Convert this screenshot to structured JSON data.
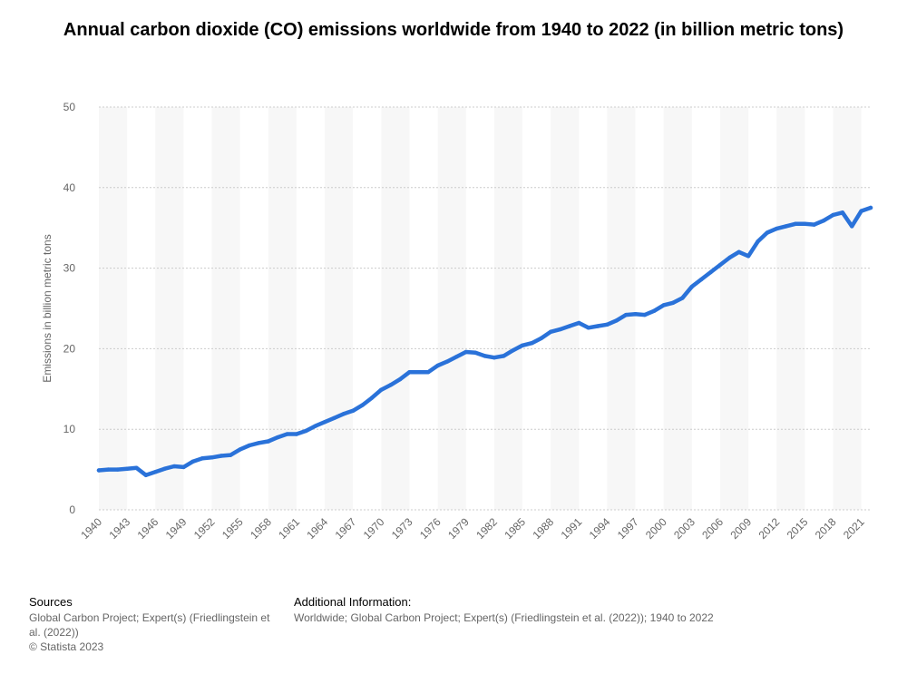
{
  "title": "Annual carbon dioxide (CO) emissions worldwide from 1940 to 2022 (in billion metric tons)",
  "footer": {
    "sources_label": "Sources",
    "sources_text": "Global Carbon Project; Expert(s) (Friedlingstein et al. (2022))",
    "copyright": "© Statista 2023",
    "info_label": "Additional Information:",
    "info_text": "Worldwide; Global Carbon Project; Expert(s) (Friedlingstein et al. (2022)); 1940 to 2022"
  },
  "colors": {
    "line": "#2a72d9",
    "band": "#f7f7f7",
    "grid": "#cccccc",
    "axis_text": "#666666"
  },
  "chart_data": {
    "type": "line",
    "title": "Annual carbon dioxide (CO) emissions worldwide from 1940 to 2022 (in billion metric tons)",
    "xlabel": "",
    "ylabel": "Emissions in billion metric tons",
    "ylim": [
      0,
      50
    ],
    "yticks": [
      0,
      10,
      20,
      30,
      40,
      50
    ],
    "xticks": [
      "1940",
      "1943",
      "1946",
      "1949",
      "1952",
      "1955",
      "1958",
      "1961",
      "1964",
      "1967",
      "1970",
      "1973",
      "1976",
      "1979",
      "1982",
      "1985",
      "1988",
      "1991",
      "1994",
      "1997",
      "2000",
      "2003",
      "2006",
      "2009",
      "2012",
      "2015",
      "2018",
      "2021"
    ],
    "grid": true,
    "legend": "none",
    "x": [
      1940,
      1941,
      1942,
      1943,
      1944,
      1945,
      1946,
      1947,
      1948,
      1949,
      1950,
      1951,
      1952,
      1953,
      1954,
      1955,
      1956,
      1957,
      1958,
      1959,
      1960,
      1961,
      1962,
      1963,
      1964,
      1965,
      1966,
      1967,
      1968,
      1969,
      1970,
      1971,
      1972,
      1973,
      1974,
      1975,
      1976,
      1977,
      1978,
      1979,
      1980,
      1981,
      1982,
      1983,
      1984,
      1985,
      1986,
      1987,
      1988,
      1989,
      1990,
      1991,
      1992,
      1993,
      1994,
      1995,
      1996,
      1997,
      1998,
      1999,
      2000,
      2001,
      2002,
      2003,
      2004,
      2005,
      2006,
      2007,
      2008,
      2009,
      2010,
      2011,
      2012,
      2013,
      2014,
      2015,
      2016,
      2017,
      2018,
      2019,
      2020,
      2021,
      2022
    ],
    "series": [
      {
        "values": [
          4.9,
          5.0,
          5.0,
          5.1,
          5.2,
          4.3,
          4.7,
          5.1,
          5.4,
          5.3,
          6.0,
          6.4,
          6.5,
          6.7,
          6.8,
          7.5,
          8.0,
          8.3,
          8.5,
          9.0,
          9.4,
          9.4,
          9.8,
          10.4,
          10.9,
          11.4,
          11.9,
          12.3,
          13.0,
          13.9,
          14.9,
          15.5,
          16.2,
          17.1,
          17.1,
          17.1,
          17.9,
          18.4,
          19.0,
          19.6,
          19.5,
          19.1,
          18.9,
          19.1,
          19.8,
          20.4,
          20.7,
          21.3,
          22.1,
          22.4,
          22.8,
          23.2,
          22.6,
          22.8,
          23.0,
          23.5,
          24.2,
          24.3,
          24.2,
          24.7,
          25.4,
          25.7,
          26.3,
          27.7,
          28.6,
          29.5,
          30.4,
          31.3,
          32.0,
          31.5,
          33.3,
          34.4,
          34.9,
          35.2,
          35.5,
          35.5,
          35.4,
          35.9,
          36.6,
          36.9,
          35.2,
          37.1,
          37.5
        ]
      }
    ]
  }
}
